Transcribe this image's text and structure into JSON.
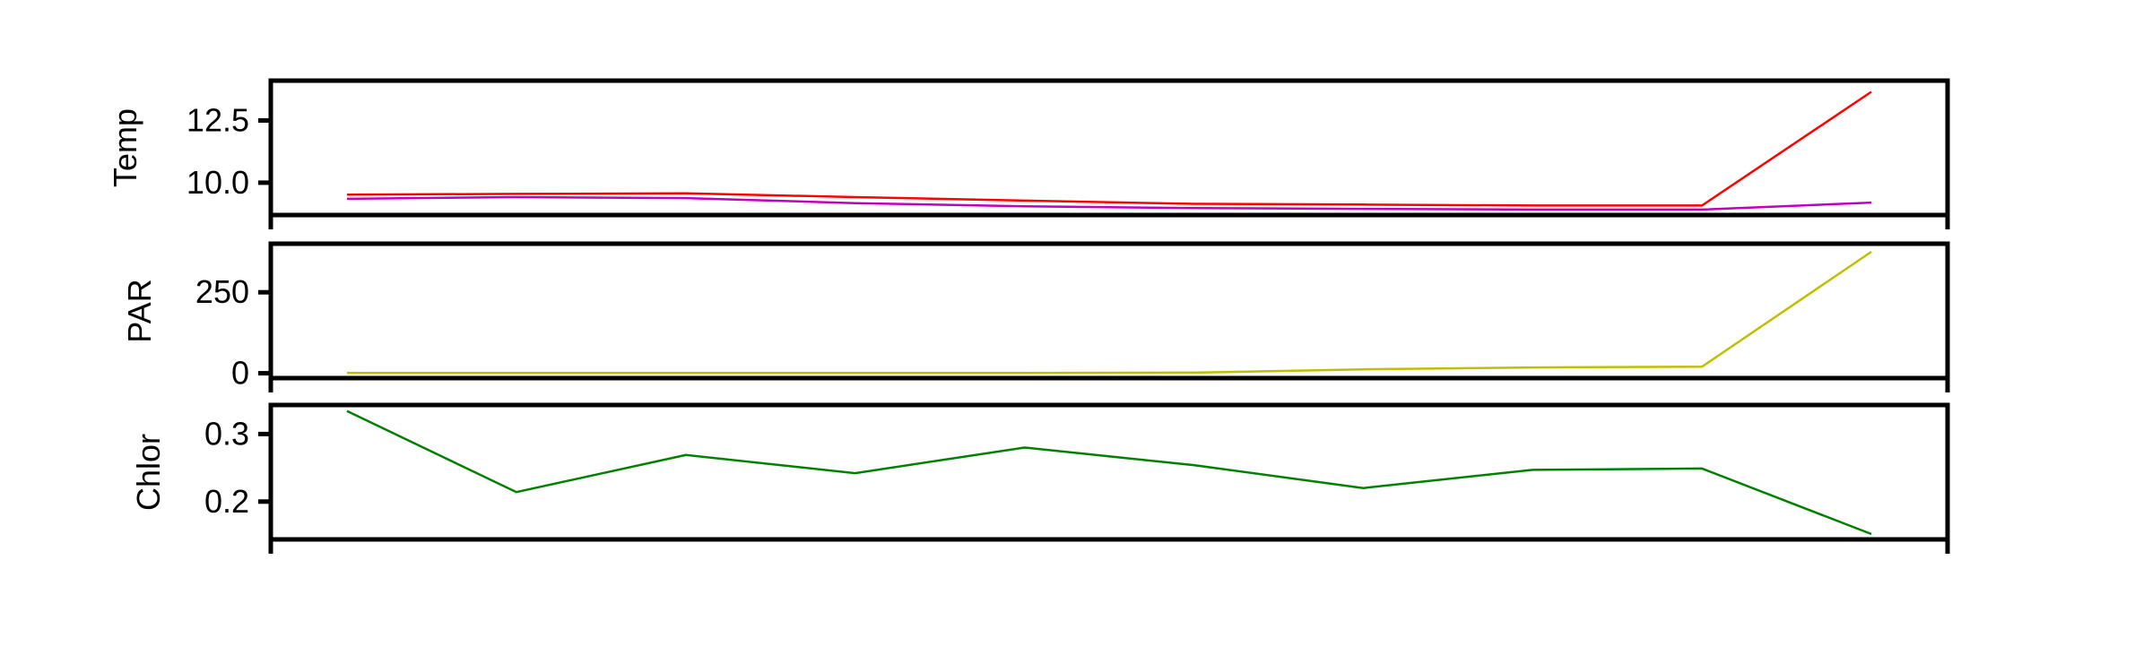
{
  "chart_data": [
    {
      "type": "line",
      "ylabel": "Temp",
      "yticks": [
        10.0,
        12.5
      ],
      "ytick_labels": [
        "10.0",
        "12.5"
      ],
      "ylim": [
        8.7,
        14.1
      ],
      "x": [
        0,
        1,
        2,
        3,
        4,
        5,
        6,
        7,
        8,
        9
      ],
      "series": [
        {
          "color": "#ff0000",
          "values": [
            9.52,
            9.55,
            9.57,
            9.42,
            9.28,
            9.15,
            9.12,
            9.08,
            9.08,
            13.65
          ]
        },
        {
          "color": "#bf00bf",
          "values": [
            9.35,
            9.42,
            9.38,
            9.18,
            9.05,
            8.98,
            8.95,
            8.92,
            8.92,
            9.2
          ]
        }
      ]
    },
    {
      "type": "line",
      "ylabel": "PAR",
      "yticks": [
        0,
        250
      ],
      "ytick_labels": [
        "0",
        "250"
      ],
      "ylim": [
        -15,
        400
      ],
      "x": [
        0,
        1,
        2,
        3,
        4,
        5,
        6,
        7,
        8,
        9
      ],
      "series": [
        {
          "color": "#bfbf00",
          "values": [
            1,
            1,
            1,
            1,
            1,
            2,
            12,
            18,
            20,
            375
          ]
        }
      ]
    },
    {
      "type": "line",
      "ylabel": "Chlor",
      "yticks": [
        0.2,
        0.3
      ],
      "ytick_labels": [
        "0.2",
        "0.3"
      ],
      "ylim": [
        0.144,
        0.343
      ],
      "x": [
        0,
        1,
        2,
        3,
        4,
        5,
        6,
        7,
        8,
        9
      ],
      "series": [
        {
          "color": "#008000",
          "values": [
            0.334,
            0.214,
            0.269,
            0.242,
            0.28,
            0.254,
            0.22,
            0.247,
            0.249,
            0.152
          ]
        }
      ]
    }
  ]
}
